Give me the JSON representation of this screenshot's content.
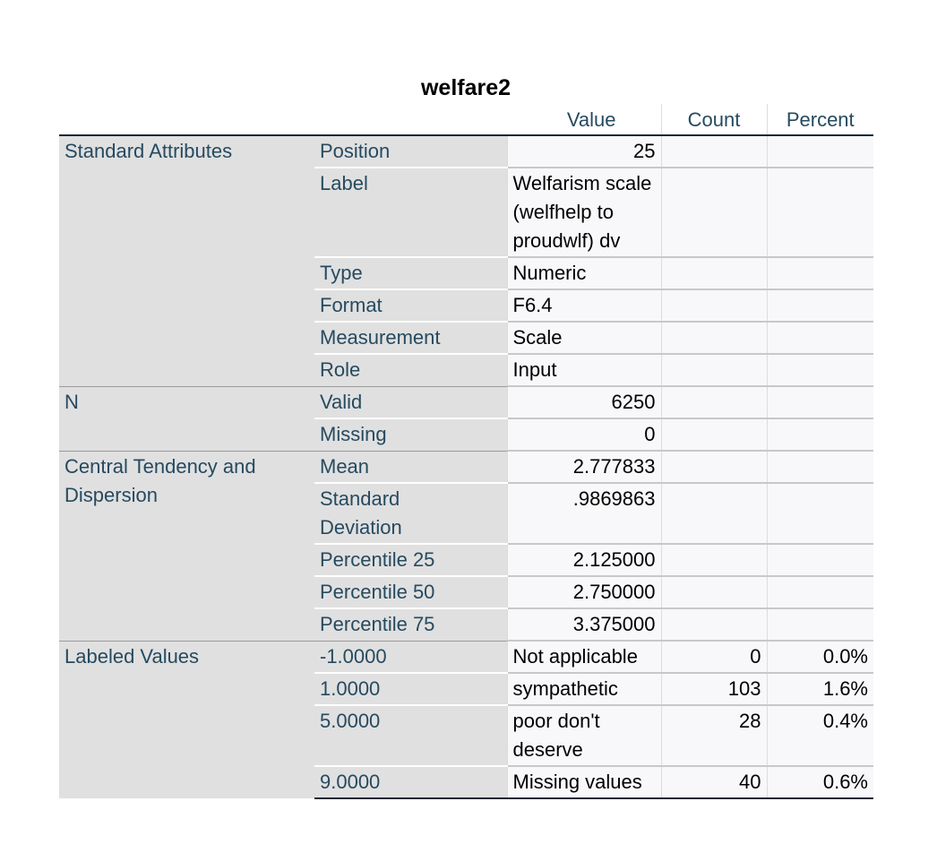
{
  "title": "welfare2",
  "columns": {
    "value": "Value",
    "count": "Count",
    "percent": "Percent"
  },
  "groups": {
    "standard": "Standard Attributes",
    "n": "N",
    "central": "Central Tendency and Dispersion",
    "labeled": "Labeled Values"
  },
  "rows": {
    "position": {
      "label": "Position",
      "value": "25"
    },
    "label": {
      "label": "Label",
      "value": "Welfarism scale (welfhelp to proudwlf) dv"
    },
    "type": {
      "label": "Type",
      "value": "Numeric"
    },
    "format": {
      "label": "Format",
      "value": "F6.4"
    },
    "measurement": {
      "label": "Measurement",
      "value": "Scale"
    },
    "role": {
      "label": "Role",
      "value": "Input"
    },
    "valid": {
      "label": "Valid",
      "value": "6250"
    },
    "missing": {
      "label": "Missing",
      "value": "0"
    },
    "mean": {
      "label": "Mean",
      "value": "2.777833"
    },
    "sd": {
      "label": "Standard Deviation",
      "value": ".9869863"
    },
    "p25": {
      "label": "Percentile 25",
      "value": "2.125000"
    },
    "p50": {
      "label": "Percentile 50",
      "value": "2.750000"
    },
    "p75": {
      "label": "Percentile 75",
      "value": "3.375000"
    }
  },
  "labeled_values": [
    {
      "code": "-1.0000",
      "label": "Not applicable",
      "count": "0",
      "percent": "0.0%"
    },
    {
      "code": "1.0000",
      "label": "sympathetic",
      "count": "103",
      "percent": "1.6%"
    },
    {
      "code": "5.0000",
      "label": "poor don't deserve",
      "count": "28",
      "percent": "0.4%"
    },
    {
      "code": "9.0000",
      "label": "Missing values",
      "count": "40",
      "percent": "0.6%"
    }
  ]
}
